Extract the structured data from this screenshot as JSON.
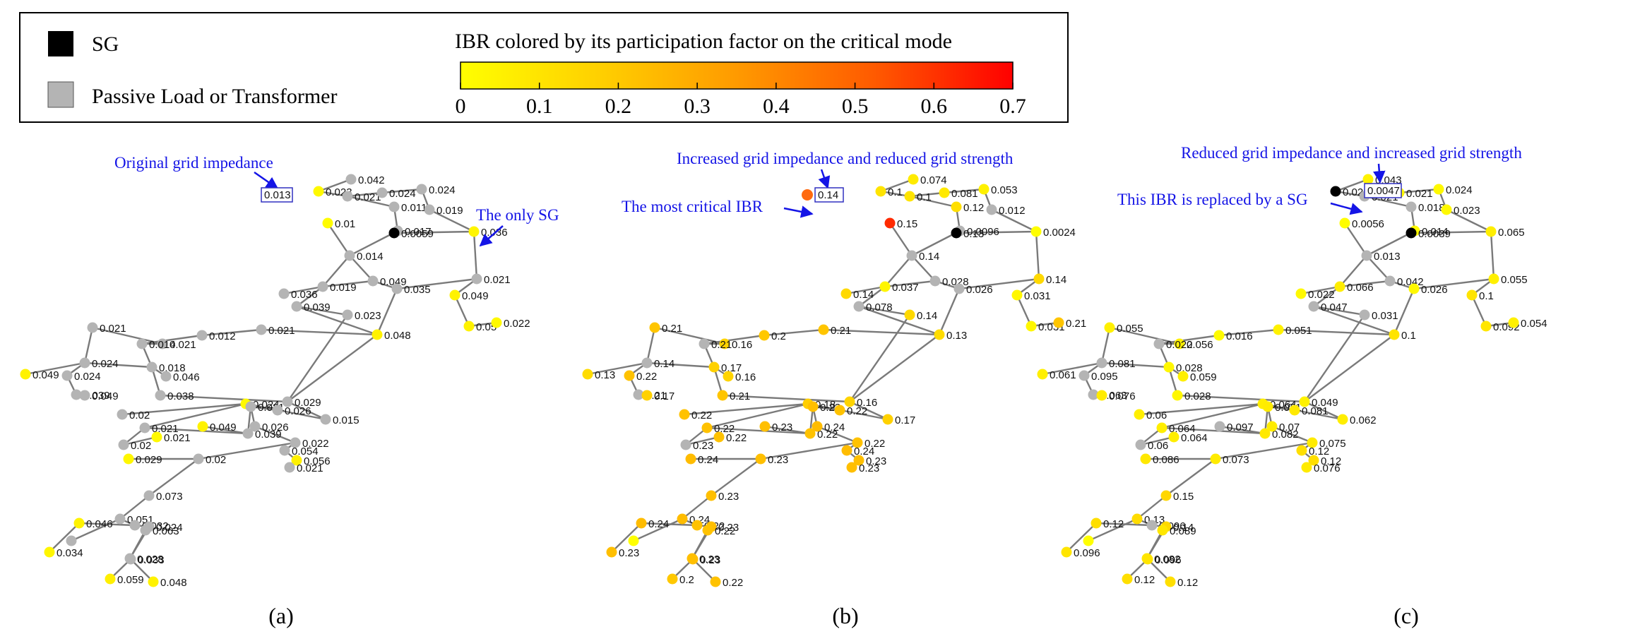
{
  "legend": {
    "sg_label": "SG",
    "passive_label": "Passive Load or Transformer",
    "colorbar_title": "IBR colored by its participation factor on the critical mode",
    "colorbar_ticks": [
      "0",
      "0.1",
      "0.2",
      "0.3",
      "0.4",
      "0.5",
      "0.6",
      "0.7"
    ],
    "colorbar_min": 0,
    "colorbar_max": 0.7,
    "colorbar_colors": [
      "#ffff00",
      "#ffd000",
      "#ff9a00",
      "#ff5a00",
      "#ff0000"
    ],
    "sg_color": "#000000",
    "passive_color": "#b4b4b4"
  },
  "panels": [
    {
      "caption": "(a)",
      "annotations": [
        {
          "text": "Original grid impedance"
        },
        {
          "text": "The only SG"
        }
      ],
      "boxed_value": "0.013",
      "sg_value": "0.028",
      "values": [
        "0.042",
        "0.023",
        "0.021",
        "0.024",
        "0.024",
        "0.011",
        "0.019",
        "0.017",
        "0.01",
        "0.014",
        "0.0059",
        "0.036",
        "0.019",
        "0.049",
        "0.035",
        "0.036",
        "0.021",
        "0.039",
        "0.023",
        "0.048",
        "0.049",
        "0.05",
        "0.022",
        "0.021",
        "0.012",
        "0.021",
        "0.021",
        "0.014",
        "0.018",
        "0.046",
        "0.024",
        "0.049",
        "0.024",
        "0.039",
        "0.049",
        "0.038",
        "0.029",
        "0.015",
        "0.024",
        "0.02",
        "0.021",
        "0.02",
        "0.021",
        "0.039",
        "0.021",
        "0.026",
        "0.026",
        "0.049",
        "0.022",
        "0.02",
        "0.029",
        "0.054",
        "0.056",
        "0.021",
        "0.073",
        "0.051",
        "0.032",
        "0.046",
        "0.024",
        "0.028",
        "0.063",
        "0.034",
        "0.033",
        "0.059",
        "0.048"
      ]
    },
    {
      "caption": "(b)",
      "annotations": [
        {
          "text": "Increased grid impedance and reduced grid strength"
        },
        {
          "text": "The most critical IBR"
        }
      ],
      "boxed_value": "0.14",
      "critical_value": "0.14",
      "values": [
        "0.074",
        "0.1",
        "0.1",
        "0.081",
        "0.053",
        "0.12",
        "0.012",
        "0.0096",
        "0.15",
        "0.14",
        "0.13",
        "0.0024",
        "0.037",
        "0.028",
        "0.026",
        "0.14",
        "0.14",
        "0.078",
        "0.14",
        "0.13",
        "0.031",
        "0.031",
        "0.21",
        "0.21",
        "0.2",
        "0.16",
        "0.21",
        "0.21",
        "0.17",
        "0.16",
        "0.14",
        "0.13",
        "0.22",
        "0.21",
        "0.17",
        "0.21",
        "0.16",
        "0.17",
        "0.18",
        "0.22",
        "0.22",
        "0.23",
        "0.22",
        "0.22",
        "0.23",
        "0.22",
        "0.24",
        "0.23",
        "0.22",
        "0.23",
        "0.24",
        "0.24",
        "0.23",
        "0.23",
        "0.23",
        "0.24",
        "0.22",
        "0.24",
        "0.23",
        "0.23",
        "0.22",
        "0.23",
        "0.23",
        "0.2",
        "0.22"
      ]
    },
    {
      "caption": "(c)",
      "annotations": [
        {
          "text": "Reduced grid impedance and increased grid strength"
        },
        {
          "text": "This IBR is replaced by a SG"
        }
      ],
      "boxed_value": "0.0047",
      "sg_value": "0.13",
      "sg2_value": "0.13",
      "values": [
        "0.043",
        "0.022",
        "0.021",
        "0.021",
        "0.024",
        "0.018",
        "0.023",
        "0.014",
        "0.0056",
        "0.013",
        "0.0039",
        "0.065",
        "0.066",
        "0.042",
        "0.026",
        "0.022",
        "0.055",
        "0.047",
        "0.031",
        "0.1",
        "0.1",
        "0.092",
        "0.054",
        "0.051",
        "0.016",
        "0.056",
        "0.055",
        "0.022",
        "0.028",
        "0.059",
        "0.081",
        "0.061",
        "0.095",
        "0.063",
        "0.076",
        "0.028",
        "0.049",
        "0.062",
        "0.064",
        "0.06",
        "0.064",
        "0.06",
        "0.064",
        "0.082",
        "0.071",
        "0.081",
        "0.07",
        "0.097",
        "0.075",
        "0.073",
        "0.086",
        "0.12",
        "0.12",
        "0.076",
        "0.15",
        "0.13",
        "0.096",
        "0.12",
        "0.14",
        "0.082",
        "0.089",
        "0.096",
        "0.096",
        "0.12",
        "0.12"
      ]
    }
  ]
}
